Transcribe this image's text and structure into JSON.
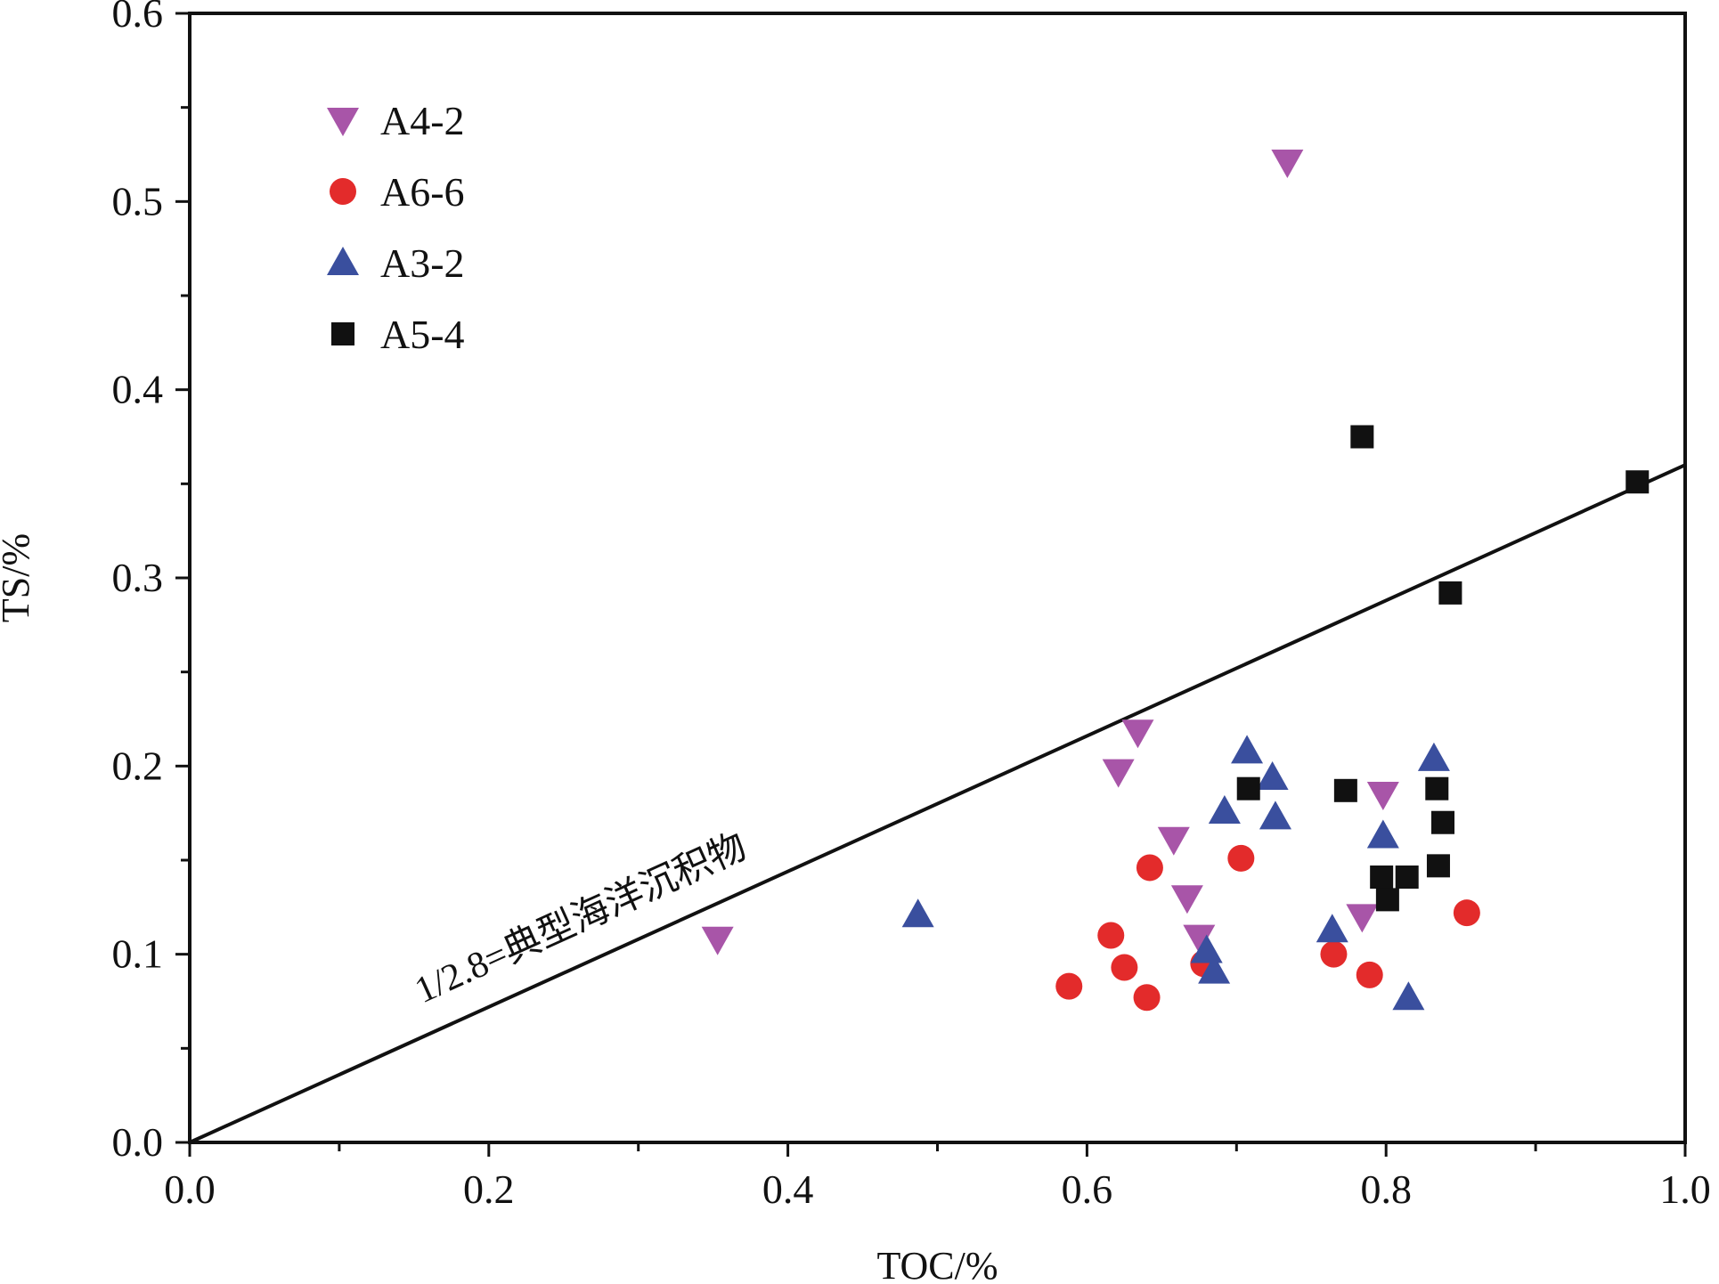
{
  "chart_data": {
    "type": "scatter",
    "xlabel": "TOC/%",
    "ylabel": "TS/%",
    "xlim": [
      0,
      1.0
    ],
    "ylim": [
      0,
      0.6
    ],
    "x_ticks": [
      "0.0",
      "0.2",
      "0.4",
      "0.6",
      "0.8",
      "1.0"
    ],
    "y_ticks": [
      "0.0",
      "0.1",
      "0.2",
      "0.3",
      "0.4",
      "0.5",
      "0.6"
    ],
    "grid": false,
    "legend_position": "top-left",
    "reference_line": {
      "label": "1/2.8=典型海洋沉积物",
      "slope": 0.357,
      "x": [
        0,
        1.0
      ],
      "y": [
        0,
        0.36
      ]
    },
    "series": [
      {
        "name": "A4-2",
        "marker": "triangle-down",
        "color": "#a855a8",
        "points": [
          [
            0.353,
            0.108
          ],
          [
            0.621,
            0.197
          ],
          [
            0.634,
            0.218
          ],
          [
            0.658,
            0.161
          ],
          [
            0.667,
            0.13
          ],
          [
            0.675,
            0.109
          ],
          [
            0.734,
            0.521
          ],
          [
            0.784,
            0.12
          ],
          [
            0.798,
            0.185
          ]
        ]
      },
      {
        "name": "A6-6",
        "marker": "circle",
        "color": "#e32b2b",
        "points": [
          [
            0.588,
            0.083
          ],
          [
            0.616,
            0.11
          ],
          [
            0.625,
            0.093
          ],
          [
            0.64,
            0.077
          ],
          [
            0.642,
            0.146
          ],
          [
            0.678,
            0.095
          ],
          [
            0.703,
            0.151
          ],
          [
            0.765,
            0.1
          ],
          [
            0.789,
            0.089
          ],
          [
            0.854,
            0.122
          ]
        ]
      },
      {
        "name": "A3-2",
        "marker": "triangle-up",
        "color": "#3a4f9e",
        "points": [
          [
            0.487,
            0.121
          ],
          [
            0.68,
            0.102
          ],
          [
            0.685,
            0.091
          ],
          [
            0.692,
            0.176
          ],
          [
            0.707,
            0.208
          ],
          [
            0.724,
            0.194
          ],
          [
            0.726,
            0.173
          ],
          [
            0.764,
            0.113
          ],
          [
            0.798,
            0.163
          ],
          [
            0.815,
            0.077
          ],
          [
            0.832,
            0.204
          ]
        ]
      },
      {
        "name": "A5-4",
        "marker": "square",
        "color": "#111111",
        "points": [
          [
            0.708,
            0.188
          ],
          [
            0.773,
            0.187
          ],
          [
            0.784,
            0.375
          ],
          [
            0.797,
            0.141
          ],
          [
            0.801,
            0.129
          ],
          [
            0.814,
            0.141
          ],
          [
            0.834,
            0.188
          ],
          [
            0.835,
            0.147
          ],
          [
            0.838,
            0.17
          ],
          [
            0.843,
            0.292
          ],
          [
            0.968,
            0.351
          ]
        ]
      }
    ]
  }
}
